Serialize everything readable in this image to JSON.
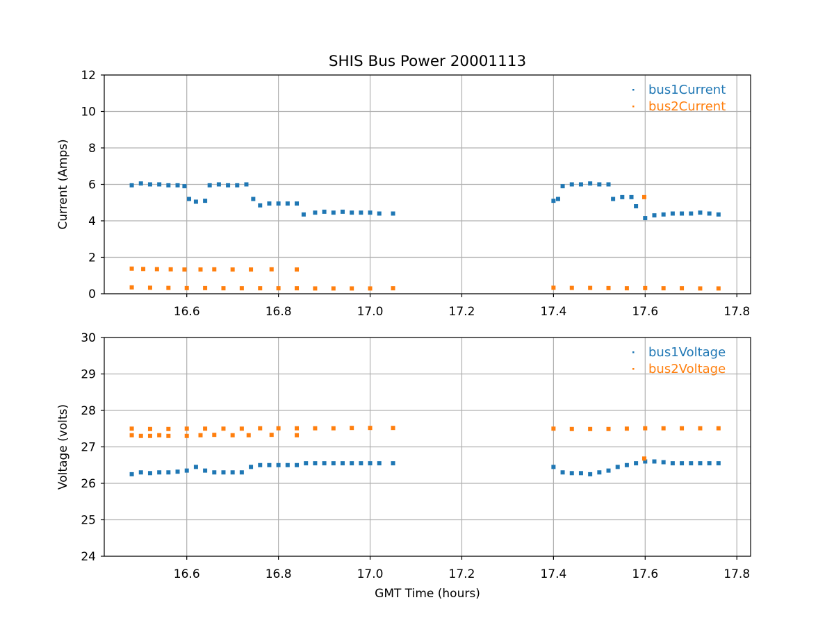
{
  "chart_data": [
    {
      "type": "scatter",
      "title": "SHIS Bus Power 20001113",
      "xlabel": "",
      "ylabel": "Current (Amps)",
      "xlim": [
        16.42,
        17.83
      ],
      "ylim": [
        0,
        12
      ],
      "x_ticks": [
        "16.6",
        "16.8",
        "17.0",
        "17.2",
        "17.4",
        "17.6",
        "17.8"
      ],
      "y_ticks": [
        "0",
        "2",
        "4",
        "6",
        "8",
        "10",
        "12"
      ],
      "grid": true,
      "legend_position": "top-right",
      "series": [
        {
          "name": "bus1Current",
          "color": "#1f77b4",
          "points": [
            [
              16.48,
              5.95
            ],
            [
              16.5,
              6.05
            ],
            [
              16.52,
              6.0
            ],
            [
              16.54,
              6.0
            ],
            [
              16.56,
              5.95
            ],
            [
              16.58,
              5.95
            ],
            [
              16.595,
              5.9
            ],
            [
              16.605,
              5.2
            ],
            [
              16.62,
              5.05
            ],
            [
              16.64,
              5.1
            ],
            [
              16.65,
              5.95
            ],
            [
              16.67,
              6.0
            ],
            [
              16.69,
              5.95
            ],
            [
              16.71,
              5.95
            ],
            [
              16.73,
              6.0
            ],
            [
              16.745,
              5.2
            ],
            [
              16.76,
              4.85
            ],
            [
              16.78,
              4.95
            ],
            [
              16.8,
              4.95
            ],
            [
              16.82,
              4.95
            ],
            [
              16.84,
              4.95
            ],
            [
              16.855,
              4.35
            ],
            [
              16.88,
              4.45
            ],
            [
              16.9,
              4.5
            ],
            [
              16.92,
              4.45
            ],
            [
              16.94,
              4.5
            ],
            [
              16.96,
              4.45
            ],
            [
              16.98,
              4.45
            ],
            [
              17.0,
              4.45
            ],
            [
              17.02,
              4.4
            ],
            [
              17.05,
              4.4
            ],
            [
              17.4,
              5.1
            ],
            [
              17.41,
              5.2
            ],
            [
              17.42,
              5.9
            ],
            [
              17.44,
              6.0
            ],
            [
              17.46,
              6.0
            ],
            [
              17.48,
              6.05
            ],
            [
              17.5,
              6.0
            ],
            [
              17.52,
              6.0
            ],
            [
              17.53,
              5.2
            ],
            [
              17.55,
              5.3
            ],
            [
              17.57,
              5.3
            ],
            [
              17.58,
              4.8
            ],
            [
              17.6,
              4.15
            ],
            [
              17.62,
              4.3
            ],
            [
              17.64,
              4.35
            ],
            [
              17.66,
              4.4
            ],
            [
              17.68,
              4.4
            ],
            [
              17.7,
              4.4
            ],
            [
              17.72,
              4.45
            ],
            [
              17.74,
              4.4
            ],
            [
              17.76,
              4.35
            ]
          ]
        },
        {
          "name": "bus2Current",
          "color": "#ff7f0e",
          "points": [
            [
              16.48,
              0.35
            ],
            [
              16.52,
              0.33
            ],
            [
              16.56,
              0.32
            ],
            [
              16.6,
              0.31
            ],
            [
              16.64,
              0.31
            ],
            [
              16.68,
              0.3
            ],
            [
              16.72,
              0.3
            ],
            [
              16.76,
              0.3
            ],
            [
              16.8,
              0.3
            ],
            [
              16.84,
              0.3
            ],
            [
              16.88,
              0.29
            ],
            [
              16.92,
              0.29
            ],
            [
              16.96,
              0.29
            ],
            [
              17.0,
              0.29
            ],
            [
              17.05,
              0.3
            ],
            [
              16.48,
              1.38
            ],
            [
              16.505,
              1.36
            ],
            [
              16.535,
              1.35
            ],
            [
              16.565,
              1.34
            ],
            [
              16.595,
              1.33
            ],
            [
              16.63,
              1.33
            ],
            [
              16.66,
              1.34
            ],
            [
              16.7,
              1.33
            ],
            [
              16.74,
              1.33
            ],
            [
              16.785,
              1.34
            ],
            [
              16.84,
              1.33
            ],
            [
              17.4,
              0.33
            ],
            [
              17.44,
              0.32
            ],
            [
              17.48,
              0.32
            ],
            [
              17.52,
              0.31
            ],
            [
              17.56,
              0.3
            ],
            [
              17.6,
              0.31
            ],
            [
              17.64,
              0.3
            ],
            [
              17.68,
              0.3
            ],
            [
              17.72,
              0.29
            ],
            [
              17.76,
              0.29
            ],
            [
              17.598,
              5.3
            ]
          ]
        }
      ]
    },
    {
      "type": "scatter",
      "title": "",
      "xlabel": "GMT Time (hours)",
      "ylabel": "Voltage (volts)",
      "xlim": [
        16.42,
        17.83
      ],
      "ylim": [
        24,
        30
      ],
      "x_ticks": [
        "16.6",
        "16.8",
        "17.0",
        "17.2",
        "17.4",
        "17.6",
        "17.8"
      ],
      "y_ticks": [
        "24",
        "25",
        "26",
        "27",
        "28",
        "29",
        "30"
      ],
      "grid": true,
      "legend_position": "top-right",
      "series": [
        {
          "name": "bus1Voltage",
          "color": "#1f77b4",
          "points": [
            [
              16.48,
              26.25
            ],
            [
              16.5,
              26.3
            ],
            [
              16.52,
              26.28
            ],
            [
              16.54,
              26.3
            ],
            [
              16.56,
              26.3
            ],
            [
              16.58,
              26.32
            ],
            [
              16.6,
              26.35
            ],
            [
              16.62,
              26.45
            ],
            [
              16.64,
              26.35
            ],
            [
              16.66,
              26.3
            ],
            [
              16.68,
              26.3
            ],
            [
              16.7,
              26.3
            ],
            [
              16.72,
              26.3
            ],
            [
              16.74,
              26.45
            ],
            [
              16.76,
              26.5
            ],
            [
              16.78,
              26.5
            ],
            [
              16.8,
              26.5
            ],
            [
              16.82,
              26.5
            ],
            [
              16.84,
              26.5
            ],
            [
              16.86,
              26.55
            ],
            [
              16.88,
              26.55
            ],
            [
              16.9,
              26.55
            ],
            [
              16.92,
              26.55
            ],
            [
              16.94,
              26.55
            ],
            [
              16.96,
              26.55
            ],
            [
              16.98,
              26.55
            ],
            [
              17.0,
              26.55
            ],
            [
              17.02,
              26.55
            ],
            [
              17.05,
              26.55
            ],
            [
              17.4,
              26.45
            ],
            [
              17.42,
              26.3
            ],
            [
              17.44,
              26.28
            ],
            [
              17.46,
              26.28
            ],
            [
              17.48,
              26.25
            ],
            [
              17.5,
              26.3
            ],
            [
              17.52,
              26.35
            ],
            [
              17.54,
              26.45
            ],
            [
              17.56,
              26.5
            ],
            [
              17.58,
              26.55
            ],
            [
              17.6,
              26.6
            ],
            [
              17.62,
              26.6
            ],
            [
              17.64,
              26.58
            ],
            [
              17.66,
              26.55
            ],
            [
              17.68,
              26.55
            ],
            [
              17.7,
              26.55
            ],
            [
              17.72,
              26.55
            ],
            [
              17.74,
              26.55
            ],
            [
              17.76,
              26.55
            ]
          ]
        },
        {
          "name": "bus2Voltage",
          "color": "#ff7f0e",
          "points": [
            [
              16.48,
              27.5
            ],
            [
              16.52,
              27.49
            ],
            [
              16.56,
              27.49
            ],
            [
              16.6,
              27.5
            ],
            [
              16.64,
              27.5
            ],
            [
              16.68,
              27.5
            ],
            [
              16.72,
              27.5
            ],
            [
              16.76,
              27.51
            ],
            [
              16.8,
              27.51
            ],
            [
              16.84,
              27.51
            ],
            [
              16.88,
              27.51
            ],
            [
              16.92,
              27.51
            ],
            [
              16.96,
              27.52
            ],
            [
              17.0,
              27.52
            ],
            [
              17.05,
              27.52
            ],
            [
              16.48,
              27.32
            ],
            [
              16.5,
              27.3
            ],
            [
              16.52,
              27.3
            ],
            [
              16.54,
              27.32
            ],
            [
              16.56,
              27.3
            ],
            [
              16.6,
              27.3
            ],
            [
              16.63,
              27.32
            ],
            [
              16.66,
              27.33
            ],
            [
              16.7,
              27.32
            ],
            [
              16.735,
              27.32
            ],
            [
              16.785,
              27.33
            ],
            [
              16.84,
              27.32
            ],
            [
              17.4,
              27.5
            ],
            [
              17.44,
              27.49
            ],
            [
              17.48,
              27.49
            ],
            [
              17.52,
              27.49
            ],
            [
              17.56,
              27.5
            ],
            [
              17.6,
              27.51
            ],
            [
              17.64,
              27.51
            ],
            [
              17.68,
              27.51
            ],
            [
              17.72,
              27.51
            ],
            [
              17.76,
              27.51
            ],
            [
              17.598,
              26.68
            ]
          ]
        }
      ]
    }
  ]
}
